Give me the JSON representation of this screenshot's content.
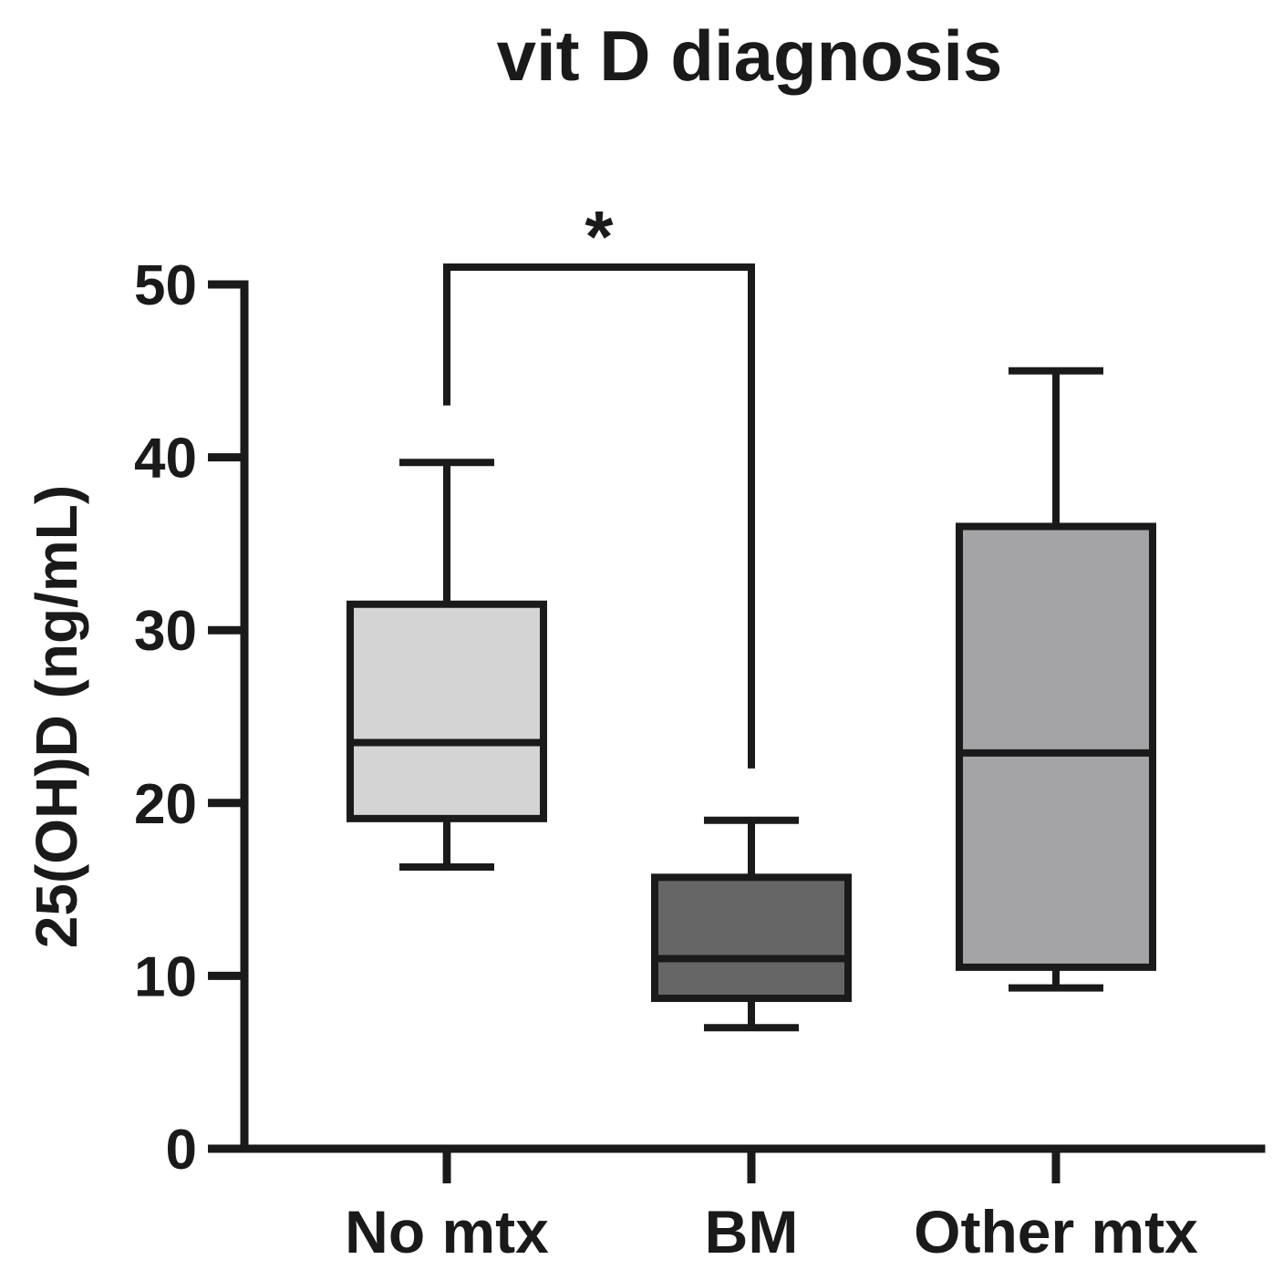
{
  "chart_data": {
    "type": "box",
    "title": "vit D diagnosis",
    "ylabel": "25(OH)D (ng/mL)",
    "ylim": [
      0,
      50
    ],
    "yticks": [
      0,
      10,
      20,
      30,
      40,
      50
    ],
    "categories": [
      "No mtx",
      "BM",
      "Other mtx"
    ],
    "boxes": [
      {
        "category": "No mtx",
        "min": 16.3,
        "q1": 19.1,
        "median": 23.5,
        "q3": 31.5,
        "max": 39.7,
        "color": "#d4d4d4"
      },
      {
        "category": "BM",
        "min": 7.0,
        "q1": 8.7,
        "median": 11.0,
        "q3": 15.7,
        "max": 19.0,
        "color": "#666666"
      },
      {
        "category": "Other mtx",
        "min": 9.3,
        "q1": 10.5,
        "median": 22.9,
        "q3": 36.0,
        "max": 45.0,
        "color": "#a4a4a6"
      }
    ],
    "significance": [
      {
        "from": "No mtx",
        "to": "BM",
        "label": "*",
        "level": 51,
        "left_end": 43,
        "right_end": 22
      }
    ]
  }
}
